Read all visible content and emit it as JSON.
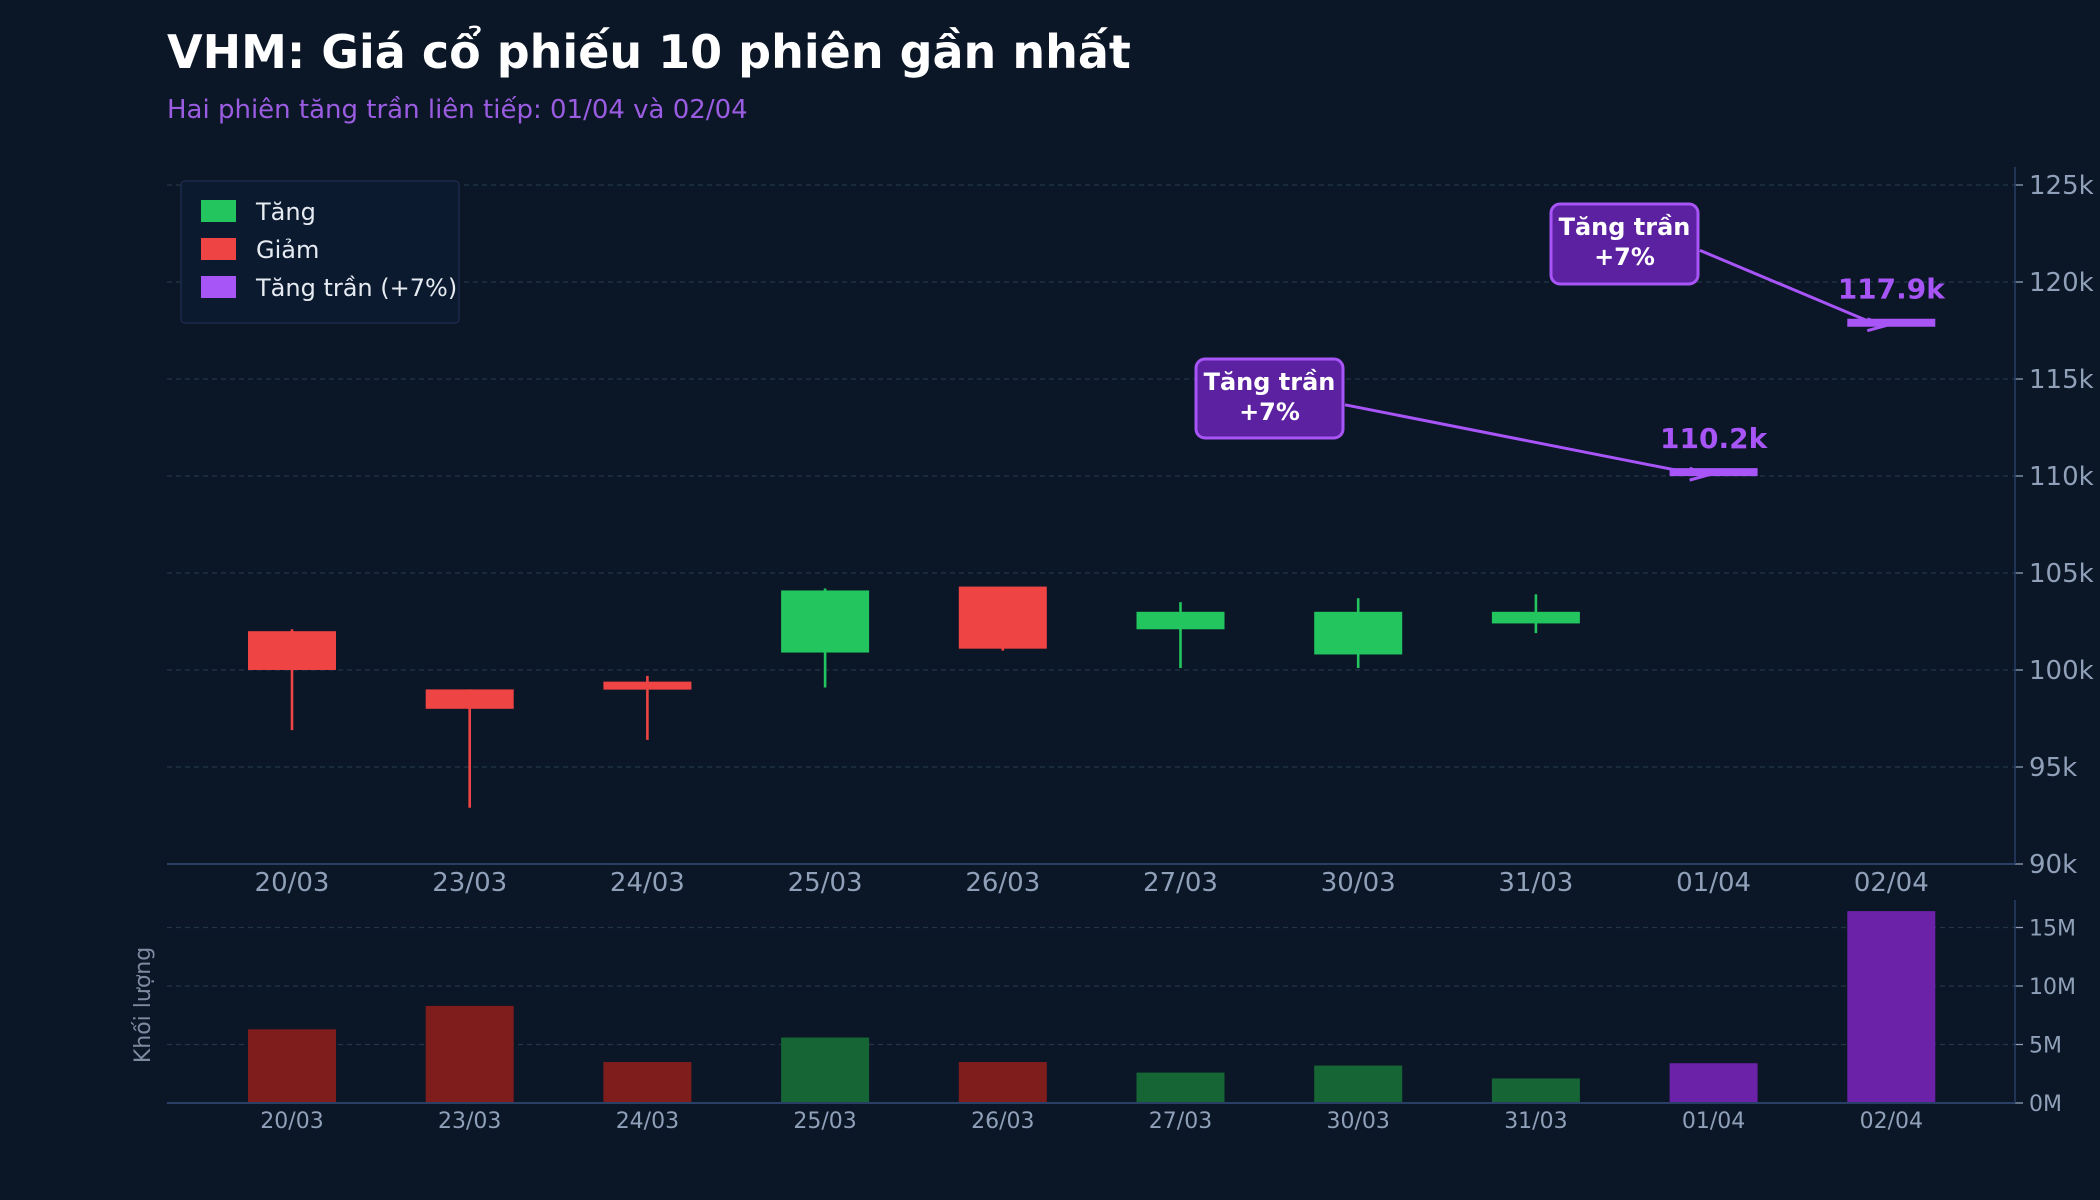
{
  "chart_data": {
    "type": "candlestick",
    "title": "VHM: Giá cổ phiếu 10 phiên gần nhất",
    "subtitle": "Hai phiên tăng trần liên tiếp: 01/04 và 02/04",
    "categories": [
      "20/03",
      "23/03",
      "24/03",
      "25/03",
      "26/03",
      "27/03",
      "30/03",
      "31/03",
      "01/04",
      "02/04"
    ],
    "open": [
      102.0,
      99.0,
      99.4,
      100.9,
      104.3,
      102.1,
      100.8,
      102.4,
      110.2,
      117.9
    ],
    "high": [
      102.1,
      99.0,
      99.7,
      104.2,
      104.3,
      103.5,
      103.7,
      103.9,
      110.2,
      117.9
    ],
    "low": [
      96.9,
      92.9,
      96.4,
      99.1,
      101.0,
      100.1,
      100.1,
      101.9,
      110.2,
      117.9
    ],
    "close": [
      100.0,
      98.0,
      99.0,
      104.1,
      101.1,
      103.0,
      103.0,
      103.0,
      110.2,
      117.9
    ],
    "kind": [
      "down",
      "down",
      "down",
      "up",
      "down",
      "up",
      "up",
      "up",
      "ceiling",
      "ceiling"
    ],
    "price_unit": "k VND",
    "ylim": [
      90,
      126
    ],
    "yticks": [
      "90k",
      "95k",
      "100k",
      "105k",
      "110k",
      "115k",
      "120k",
      "125k"
    ],
    "ytick_values": [
      90,
      95,
      100,
      105,
      110,
      115,
      120,
      125
    ],
    "volume": {
      "ylabel": "Khối lượng",
      "values_m": [
        6.3,
        8.3,
        3.5,
        5.6,
        3.5,
        2.6,
        3.2,
        2.1,
        3.4,
        16.4
      ],
      "ylim": [
        0,
        17.5
      ],
      "yticks": [
        "0M",
        "5M",
        "10M",
        "15M"
      ],
      "ytick_values": [
        0,
        5,
        10,
        15
      ]
    },
    "legend": {
      "position": "top-left",
      "items": [
        {
          "label": "Tăng",
          "color": "#22c55e"
        },
        {
          "label": "Giảm",
          "color": "#ef4444"
        },
        {
          "label": "Tăng trần (+7%)",
          "color": "#a855f7"
        }
      ]
    },
    "annotations": [
      {
        "index": 8,
        "value_label": "110.2k",
        "box_text_line1": "Tăng trần",
        "box_text_line2": "+7%"
      },
      {
        "index": 9,
        "value_label": "117.9k",
        "box_text_line1": "Tăng trần",
        "box_text_line2": "+7%"
      }
    ],
    "colors": {
      "up": "#22c55e",
      "down": "#ef4444",
      "ceiling": "#a855f7",
      "vol_up": "#166534",
      "vol_down": "#7f1d1d",
      "vol_ceiling": "#6b21a8",
      "background": "#0b1627"
    },
    "grid": true
  }
}
